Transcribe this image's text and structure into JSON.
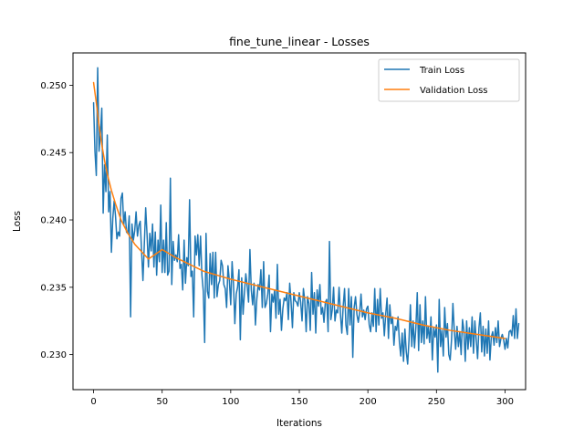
{
  "chart_data": {
    "type": "line",
    "title": "fine_tune_linear - Losses",
    "xlabel": "Iterations",
    "ylabel": "Loss",
    "xlim": [
      -15,
      315
    ],
    "ylim": [
      0.2274,
      0.2524
    ],
    "xticks": [
      0,
      50,
      100,
      150,
      200,
      250,
      300
    ],
    "yticks": [
      0.23,
      0.235,
      0.24,
      0.245,
      0.25
    ],
    "ytick_labels": [
      "0.230",
      "0.235",
      "0.240",
      "0.245",
      "0.250"
    ],
    "grid": false,
    "legend_position": "top-right",
    "series": [
      {
        "name": "Train Loss",
        "color": "#1f77b4",
        "x_start": 0,
        "x_step": 1,
        "values": [
          0.2487,
          0.2451,
          0.2433,
          0.2513,
          0.2451,
          0.2464,
          0.2483,
          0.2405,
          0.2441,
          0.2421,
          0.2463,
          0.2406,
          0.2421,
          0.2376,
          0.2401,
          0.2414,
          0.2403,
          0.2386,
          0.2391,
          0.2388,
          0.2416,
          0.242,
          0.2396,
          0.2406,
          0.2391,
          0.239,
          0.2403,
          0.2328,
          0.2397,
          0.2385,
          0.2392,
          0.2406,
          0.2388,
          0.2396,
          0.2399,
          0.2377,
          0.2355,
          0.2382,
          0.2409,
          0.2389,
          0.2365,
          0.239,
          0.2377,
          0.2397,
          0.2365,
          0.2391,
          0.2359,
          0.2385,
          0.2369,
          0.2411,
          0.2361,
          0.2385,
          0.2361,
          0.2398,
          0.2359,
          0.2362,
          0.2431,
          0.2352,
          0.2384,
          0.237,
          0.2374,
          0.2369,
          0.2389,
          0.2364,
          0.2367,
          0.2348,
          0.2385,
          0.2353,
          0.2372,
          0.2366,
          0.2415,
          0.2358,
          0.2362,
          0.2328,
          0.2388,
          0.2374,
          0.2389,
          0.2366,
          0.2388,
          0.2359,
          0.2347,
          0.2309,
          0.239,
          0.2347,
          0.2342,
          0.2375,
          0.2352,
          0.2376,
          0.2342,
          0.2376,
          0.2343,
          0.2352,
          0.2355,
          0.237,
          0.2366,
          0.2352,
          0.2349,
          0.2335,
          0.2366,
          0.2355,
          0.2337,
          0.2369,
          0.2353,
          0.2323,
          0.2345,
          0.235,
          0.2363,
          0.2311,
          0.2357,
          0.233,
          0.2346,
          0.236,
          0.2351,
          0.2339,
          0.2378,
          0.2348,
          0.2337,
          0.2353,
          0.2322,
          0.2341,
          0.2352,
          0.2348,
          0.2363,
          0.2335,
          0.2369,
          0.2335,
          0.2338,
          0.2345,
          0.2359,
          0.2317,
          0.2345,
          0.2339,
          0.2348,
          0.2327,
          0.2367,
          0.233,
          0.2341,
          0.2318,
          0.2334,
          0.2342,
          0.234,
          0.2346,
          0.2326,
          0.2353,
          0.2339,
          0.232,
          0.2346,
          0.234,
          0.2339,
          0.2336,
          0.2346,
          0.2339,
          0.2325,
          0.2349,
          0.234,
          0.2317,
          0.2343,
          0.2338,
          0.2318,
          0.2361,
          0.233,
          0.2346,
          0.2316,
          0.2348,
          0.2336,
          0.2352,
          0.233,
          0.2335,
          0.2324,
          0.2339,
          0.2341,
          0.2317,
          0.2384,
          0.2326,
          0.2333,
          0.235,
          0.2325,
          0.2333,
          0.2331,
          0.235,
          0.233,
          0.2316,
          0.2336,
          0.2349,
          0.2322,
          0.2315,
          0.2349,
          0.2322,
          0.2343,
          0.2298,
          0.2335,
          0.2343,
          0.233,
          0.2324,
          0.2331,
          0.2345,
          0.2328,
          0.2333,
          0.2326,
          0.2334,
          0.2336,
          0.2322,
          0.2317,
          0.2331,
          0.2321,
          0.2349,
          0.2317,
          0.2341,
          0.2322,
          0.2349,
          0.2327,
          0.2331,
          0.2314,
          0.233,
          0.2342,
          0.2312,
          0.2337,
          0.2323,
          0.2328,
          0.2307,
          0.2321,
          0.2318,
          0.2328,
          0.2309,
          0.2299,
          0.2316,
          0.2295,
          0.2319,
          0.2302,
          0.2293,
          0.2311,
          0.2337,
          0.2306,
          0.2325,
          0.2305,
          0.232,
          0.2346,
          0.2303,
          0.2337,
          0.2309,
          0.2325,
          0.2308,
          0.2343,
          0.2312,
          0.2321,
          0.2309,
          0.2328,
          0.2296,
          0.232,
          0.2313,
          0.2322,
          0.2287,
          0.2341,
          0.2306,
          0.2318,
          0.2299,
          0.2335,
          0.2313,
          0.2323,
          0.23,
          0.2296,
          0.2311,
          0.2338,
          0.2318,
          0.2304,
          0.2321,
          0.2306,
          0.2317,
          0.23,
          0.2326,
          0.2318,
          0.2295,
          0.2325,
          0.2304,
          0.232,
          0.2306,
          0.2328,
          0.2301,
          0.2325,
          0.2311,
          0.2297,
          0.232,
          0.2331,
          0.2302,
          0.2321,
          0.2299,
          0.2319,
          0.2301,
          0.2325,
          0.2296,
          0.2313,
          0.2317,
          0.2307,
          0.232,
          0.2309,
          0.2325,
          0.2306,
          0.2312,
          0.2315,
          0.2311,
          0.2304,
          0.2312,
          0.2305,
          0.2317,
          0.2318,
          0.2314,
          0.2329,
          0.2312,
          0.2334,
          0.2312,
          0.2323
        ]
      },
      {
        "name": "Validation Loss",
        "color": "#ff7f0e",
        "x": [
          0,
          2,
          4,
          6,
          8,
          10,
          13,
          16,
          20,
          25,
          30,
          40,
          50,
          60,
          70,
          80,
          90,
          100,
          120,
          140,
          160,
          180,
          200,
          220,
          240,
          260,
          280,
          300
        ],
        "values": [
          0.2502,
          0.2487,
          0.247,
          0.2456,
          0.2444,
          0.2434,
          0.2422,
          0.2412,
          0.24,
          0.239,
          0.2382,
          0.2371,
          0.2378,
          0.2372,
          0.2367,
          0.2362,
          0.2359,
          0.2356,
          0.2351,
          0.2346,
          0.2341,
          0.2336,
          0.2331,
          0.2327,
          0.2322,
          0.2318,
          0.2315,
          0.2312
        ]
      }
    ]
  }
}
